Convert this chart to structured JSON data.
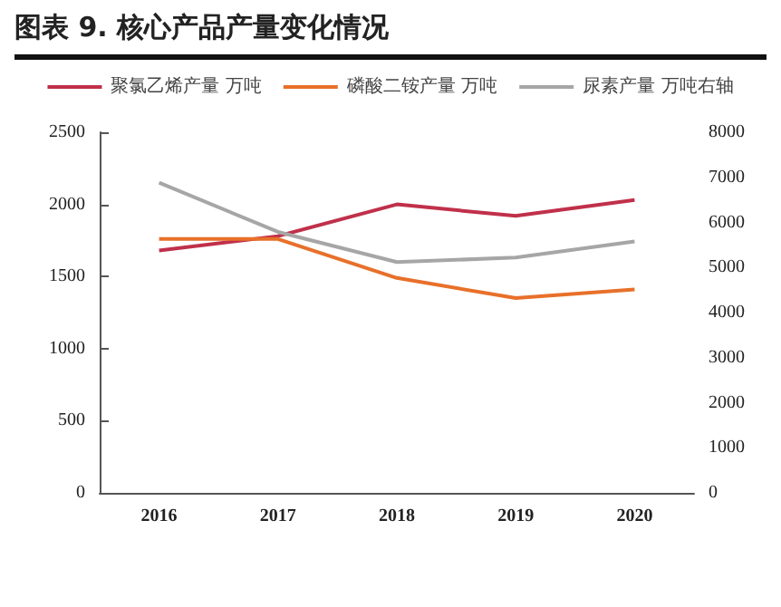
{
  "chart_data": {
    "type": "line",
    "title": "图表 9.  核心产品产量变化情况",
    "categories": [
      "2016",
      "2017",
      "2018",
      "2019",
      "2020"
    ],
    "series": [
      {
        "name": "聚氯乙烯产量 万吨",
        "color": "#c0304a",
        "values": [
          1680,
          1780,
          2000,
          1920,
          2030
        ]
      },
      {
        "name": "磷酸二铵产量 万吨",
        "color": "#e8702a",
        "values": [
          1760,
          1760,
          1490,
          1350,
          1410
        ]
      },
      {
        "name": "尿素产量 万吨右轴",
        "color": "#a6a6a6",
        "axis": "y2",
        "values": [
          6880,
          5790,
          5120,
          5220,
          5580
        ]
      }
    ],
    "ylim": [
      0,
      2500
    ],
    "yticks": [
      0,
      500,
      1000,
      1500,
      2000,
      2500
    ],
    "y2lim": [
      0,
      8000
    ],
    "y2ticks": [
      0,
      1000,
      2000,
      3000,
      4000,
      5000,
      6000,
      7000,
      8000
    ],
    "grid": false,
    "legend": "top",
    "marker": "none",
    "line_style": "solid"
  }
}
